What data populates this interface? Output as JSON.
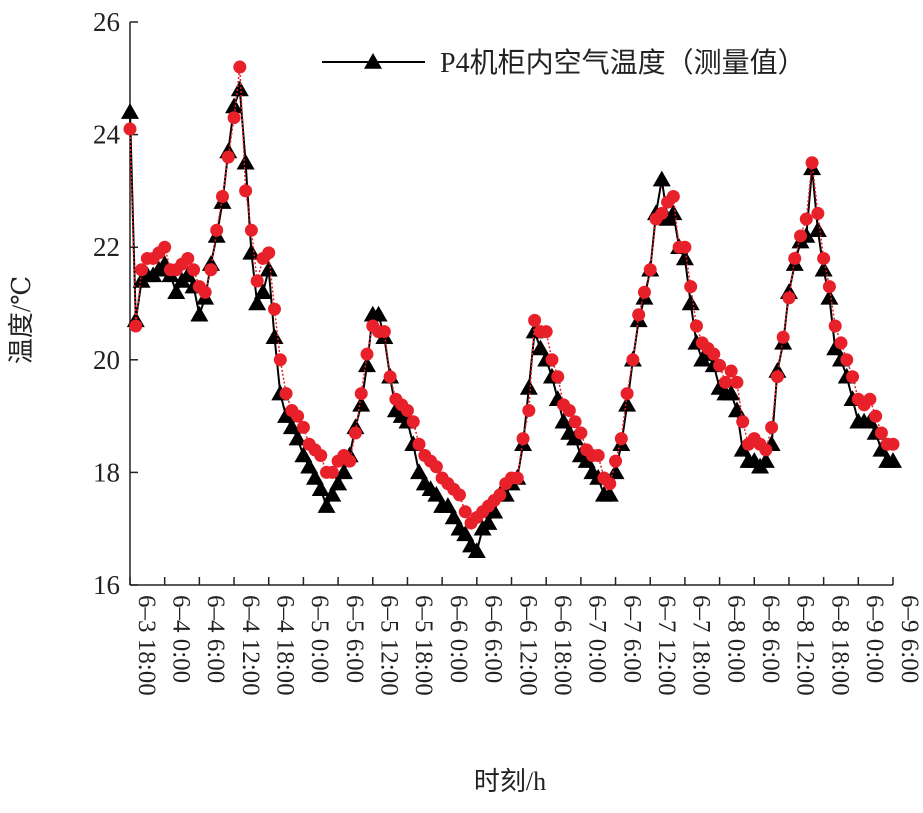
{
  "chart_data": {
    "type": "line",
    "x_label": "时刻/h",
    "y_label": "温度/℃",
    "categories": [
      "6–3 18:00",
      null,
      null,
      null,
      null,
      null,
      "6–4 0:00",
      null,
      null,
      null,
      null,
      null,
      "6–4 6:00",
      null,
      null,
      null,
      null,
      null,
      "6–4 12:00",
      null,
      null,
      null,
      null,
      null,
      "6–4 18:00",
      null,
      null,
      null,
      null,
      null,
      "6–5 0:00",
      null,
      null,
      null,
      null,
      null,
      "6–5 6:00",
      null,
      null,
      null,
      null,
      null,
      "6–5 12:00",
      null,
      null,
      null,
      null,
      null,
      "6–5 18:00",
      null,
      null,
      null,
      null,
      null,
      "6–6 0:00",
      null,
      null,
      null,
      null,
      null,
      "6–6 6:00",
      null,
      null,
      null,
      null,
      null,
      "6–6 12:00",
      null,
      null,
      null,
      null,
      null,
      "6–6 18:00",
      null,
      null,
      null,
      null,
      null,
      "6–7 0:00",
      null,
      null,
      null,
      null,
      null,
      "6–7 6:00",
      null,
      null,
      null,
      null,
      null,
      "6–7 12:00",
      null,
      null,
      null,
      null,
      null,
      "6–7 18:00",
      null,
      null,
      null,
      null,
      null,
      "6–8 0:00",
      null,
      null,
      null,
      null,
      null,
      "6–8 6:00",
      null,
      null,
      null,
      null,
      null,
      "6–8 12:00",
      null,
      null,
      null,
      null,
      null,
      "6–8 18:00",
      null,
      null,
      null,
      null,
      null,
      "6–9 0:00",
      null,
      null,
      null,
      null,
      null,
      "6–9 6:00"
    ],
    "series": [
      {
        "name": "P4机柜内空气温度（测量值）",
        "color": "#000000",
        "marker": "triangle",
        "line": "solid",
        "values": [
          24.4,
          20.7,
          21.4,
          21.5,
          21.5,
          21.6,
          21.7,
          21.5,
          21.2,
          21.4,
          21.5,
          21.3,
          20.8,
          21.1,
          21.7,
          22.2,
          22.8,
          23.7,
          24.5,
          24.8,
          23.5,
          21.9,
          21.0,
          21.2,
          21.6,
          20.4,
          19.4,
          19.0,
          18.8,
          18.6,
          18.3,
          18.1,
          17.9,
          17.7,
          17.4,
          17.6,
          17.8,
          18.0,
          18.3,
          18.8,
          19.2,
          19.9,
          20.8,
          20.8,
          20.4,
          19.7,
          19.1,
          19.0,
          18.9,
          18.5,
          18.0,
          17.8,
          17.7,
          17.6,
          17.4,
          17.4,
          17.2,
          17.0,
          16.9,
          16.7,
          16.6,
          17.0,
          17.1,
          17.3,
          17.6,
          17.6,
          17.8,
          17.9,
          18.5,
          19.5,
          20.5,
          20.2,
          20.0,
          19.7,
          19.3,
          18.9,
          18.7,
          18.6,
          18.3,
          18.2,
          18.0,
          17.9,
          17.6,
          17.6,
          18.0,
          18.5,
          19.2,
          20.0,
          20.7,
          21.1,
          21.6,
          22.6,
          23.2,
          22.5,
          22.6,
          22.0,
          21.8,
          21.0,
          20.3,
          20.0,
          20.1,
          19.9,
          19.5,
          19.4,
          19.4,
          19.1,
          18.4,
          18.2,
          18.2,
          18.1,
          18.2,
          18.5,
          19.8,
          20.3,
          21.2,
          21.7,
          22.1,
          22.2,
          23.4,
          22.3,
          21.6,
          21.1,
          20.2,
          20.0,
          19.7,
          19.3,
          18.9,
          18.9,
          18.9,
          18.7,
          18.4,
          18.2,
          18.2
        ]
      },
      {
        "color": "#e8202a",
        "marker": "circle",
        "line": "dotted",
        "values": [
          24.1,
          20.6,
          21.6,
          21.8,
          21.8,
          21.9,
          22.0,
          21.6,
          21.6,
          21.7,
          21.8,
          21.6,
          21.3,
          21.2,
          21.6,
          22.3,
          22.9,
          23.6,
          24.3,
          25.2,
          23.0,
          22.3,
          21.4,
          21.8,
          21.9,
          20.9,
          20.0,
          19.4,
          19.1,
          19.0,
          18.8,
          18.5,
          18.4,
          18.3,
          18.0,
          18.0,
          18.2,
          18.3,
          18.2,
          18.7,
          19.4,
          20.1,
          20.6,
          20.5,
          20.5,
          19.7,
          19.3,
          19.2,
          19.1,
          18.9,
          18.5,
          18.3,
          18.2,
          18.1,
          17.9,
          17.8,
          17.7,
          17.6,
          17.3,
          17.1,
          17.2,
          17.3,
          17.4,
          17.5,
          17.6,
          17.8,
          17.9,
          17.9,
          18.6,
          19.1,
          20.7,
          20.5,
          20.5,
          20.0,
          19.7,
          19.2,
          19.1,
          18.9,
          18.7,
          18.4,
          18.3,
          18.3,
          17.9,
          17.8,
          18.2,
          18.6,
          19.4,
          20.0,
          20.8,
          21.2,
          21.6,
          22.5,
          22.6,
          22.8,
          22.9,
          22.0,
          22.0,
          21.3,
          20.6,
          20.3,
          20.2,
          20.1,
          19.9,
          19.6,
          19.8,
          19.6,
          18.9,
          18.5,
          18.6,
          18.5,
          18.4,
          18.8,
          19.7,
          20.4,
          21.1,
          21.8,
          22.2,
          22.5,
          23.5,
          22.6,
          21.8,
          21.3,
          20.6,
          20.3,
          20.0,
          19.7,
          19.3,
          19.2,
          19.3,
          19.0,
          18.7,
          18.5,
          18.5
        ]
      }
    ],
    "ylim": [
      16,
      26
    ],
    "yticks": [
      16,
      18,
      20,
      22,
      24,
      26
    ],
    "grid": false,
    "legend": "upper right"
  }
}
